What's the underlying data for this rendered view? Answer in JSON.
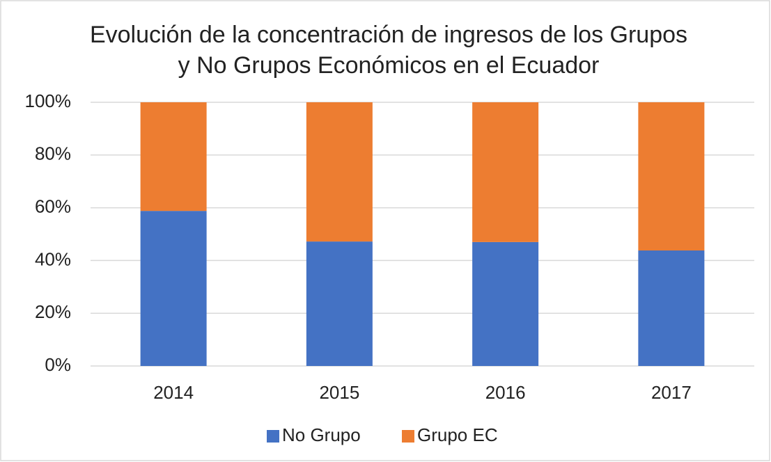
{
  "chart_data": {
    "type": "stacked_bar",
    "title": "Evolución de la concentración de ingresos de los Grupos y No Grupos Económicos en el Ecuador",
    "categories": [
      "2014",
      "2015",
      "2016",
      "2017"
    ],
    "series": [
      {
        "name": "No Grupo",
        "color": "#4472c4",
        "values": [
          58.8,
          47.2,
          47.0,
          43.8
        ]
      },
      {
        "name": "Grupo EC",
        "color": "#ed7d31",
        "values": [
          41.2,
          52.8,
          53.0,
          56.2
        ]
      }
    ],
    "ylim": [
      0,
      100
    ],
    "yticks": [
      {
        "value": 0,
        "label": "0%"
      },
      {
        "value": 20,
        "label": "20%"
      },
      {
        "value": 40,
        "label": "40%"
      },
      {
        "value": 60,
        "label": "60%"
      },
      {
        "value": 80,
        "label": "80%"
      },
      {
        "value": 100,
        "label": "100%"
      }
    ],
    "grid": true,
    "legend": "bottom"
  }
}
